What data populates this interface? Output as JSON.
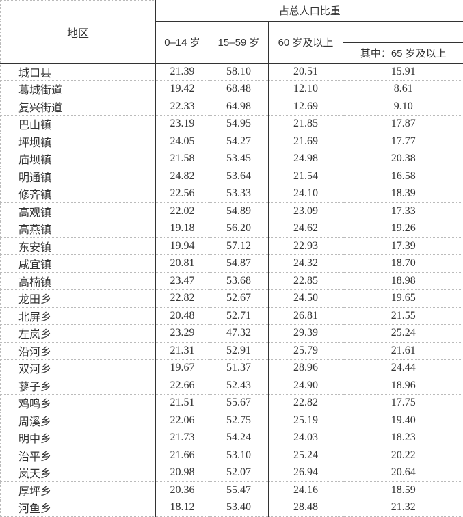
{
  "header": {
    "region": "地区",
    "group": "占总人口比重",
    "col_0_14": "0–14 岁",
    "col_15_59": "15–59 岁",
    "col_60plus": "60 岁及以上",
    "col_65plus": "其中：65 岁及以上"
  },
  "rows": [
    {
      "name": "城口县",
      "v": [
        "21.39",
        "58.10",
        "20.51",
        "15.91"
      ]
    },
    {
      "name": "葛城街道",
      "v": [
        "19.42",
        "68.48",
        "12.10",
        "8.61"
      ]
    },
    {
      "name": "复兴街道",
      "v": [
        "22.33",
        "64.98",
        "12.69",
        "9.10"
      ]
    },
    {
      "name": "巴山镇",
      "v": [
        "23.19",
        "54.95",
        "21.85",
        "17.87"
      ]
    },
    {
      "name": "坪坝镇",
      "v": [
        "24.05",
        "54.27",
        "21.69",
        "17.77"
      ]
    },
    {
      "name": "庙坝镇",
      "v": [
        "21.58",
        "53.45",
        "24.98",
        "20.38"
      ]
    },
    {
      "name": "明通镇",
      "v": [
        "24.82",
        "53.64",
        "21.54",
        "16.58"
      ]
    },
    {
      "name": "修齐镇",
      "v": [
        "22.56",
        "53.33",
        "24.10",
        "18.39"
      ]
    },
    {
      "name": "高观镇",
      "v": [
        "22.02",
        "54.89",
        "23.09",
        "17.33"
      ]
    },
    {
      "name": "高燕镇",
      "v": [
        "19.18",
        "56.20",
        "24.62",
        "19.26"
      ]
    },
    {
      "name": "东安镇",
      "v": [
        "19.94",
        "57.12",
        "22.93",
        "17.39"
      ]
    },
    {
      "name": "咸宜镇",
      "v": [
        "20.81",
        "54.87",
        "24.32",
        "18.70"
      ]
    },
    {
      "name": "高楠镇",
      "v": [
        "23.47",
        "53.68",
        "22.85",
        "18.98"
      ]
    },
    {
      "name": "龙田乡",
      "v": [
        "22.82",
        "52.67",
        "24.50",
        "19.65"
      ]
    },
    {
      "name": "北屏乡",
      "v": [
        "20.48",
        "52.71",
        "26.81",
        "21.55"
      ]
    },
    {
      "name": "左岚乡",
      "v": [
        "23.29",
        "47.32",
        "29.39",
        "25.24"
      ]
    },
    {
      "name": "沿河乡",
      "v": [
        "21.31",
        "52.91",
        "25.79",
        "21.61"
      ]
    },
    {
      "name": "双河乡",
      "v": [
        "19.67",
        "51.37",
        "28.96",
        "24.44"
      ]
    },
    {
      "name": "蓼子乡",
      "v": [
        "22.66",
        "52.43",
        "24.90",
        "18.96"
      ]
    },
    {
      "name": "鸡鸣乡",
      "v": [
        "21.51",
        "55.67",
        "22.82",
        "17.75"
      ]
    },
    {
      "name": "周溪乡",
      "v": [
        "22.06",
        "52.75",
        "25.19",
        "19.40"
      ]
    },
    {
      "name": "明中乡",
      "v": [
        "21.73",
        "54.24",
        "24.03",
        "18.23"
      ]
    },
    {
      "name": "治平乡",
      "v": [
        "21.66",
        "53.10",
        "25.24",
        "20.22"
      ]
    },
    {
      "name": "岚天乡",
      "v": [
        "20.98",
        "52.07",
        "26.94",
        "20.64"
      ]
    },
    {
      "name": "厚坪乡",
      "v": [
        "20.36",
        "55.47",
        "24.16",
        "18.59"
      ]
    },
    {
      "name": "河鱼乡",
      "v": [
        "18.12",
        "53.40",
        "28.48",
        "21.32"
      ]
    }
  ]
}
